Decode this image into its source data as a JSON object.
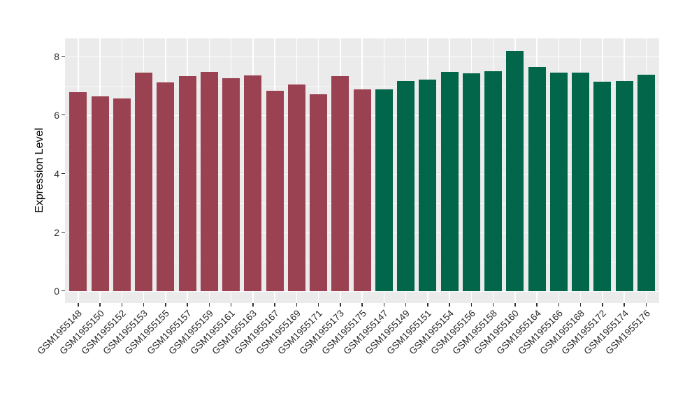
{
  "chart_data": {
    "type": "bar",
    "title": "",
    "xlabel": "",
    "ylabel": "Expression Level",
    "ylim": [
      0,
      8.6
    ],
    "yticks": [
      0,
      2,
      4,
      6,
      8
    ],
    "yticks_minor": [
      1,
      3,
      5,
      7
    ],
    "grid": "on",
    "legend_position": "none",
    "panel_background": "#ebebeb",
    "gridline_color": "#ffffff",
    "group_colors": {
      "left": "#9a4152",
      "right": "#02664a"
    },
    "categories": [
      "GSM1955148",
      "GSM1955150",
      "GSM1955152",
      "GSM1955153",
      "GSM1955155",
      "GSM1955157",
      "GSM1955159",
      "GSM1955161",
      "GSM1955163",
      "GSM1955167",
      "GSM1955169",
      "GSM1955171",
      "GSM1955173",
      "GSM1955175",
      "GSM1955147",
      "GSM1955149",
      "GSM1955151",
      "GSM1955154",
      "GSM1955156",
      "GSM1955158",
      "GSM1955160",
      "GSM1955164",
      "GSM1955166",
      "GSM1955168",
      "GSM1955172",
      "GSM1955174",
      "GSM1955176"
    ],
    "values": [
      6.78,
      6.63,
      6.56,
      7.45,
      7.11,
      7.32,
      7.47,
      7.25,
      7.35,
      6.82,
      7.04,
      6.7,
      7.31,
      6.88,
      6.88,
      7.15,
      7.2,
      7.47,
      7.41,
      7.5,
      8.17,
      7.62,
      7.44,
      7.44,
      7.14,
      7.15,
      7.37
    ],
    "bar_groups": [
      "left",
      "left",
      "left",
      "left",
      "left",
      "left",
      "left",
      "left",
      "left",
      "left",
      "left",
      "left",
      "left",
      "left",
      "right",
      "right",
      "right",
      "right",
      "right",
      "right",
      "right",
      "right",
      "right",
      "right",
      "right",
      "right",
      "right"
    ]
  }
}
